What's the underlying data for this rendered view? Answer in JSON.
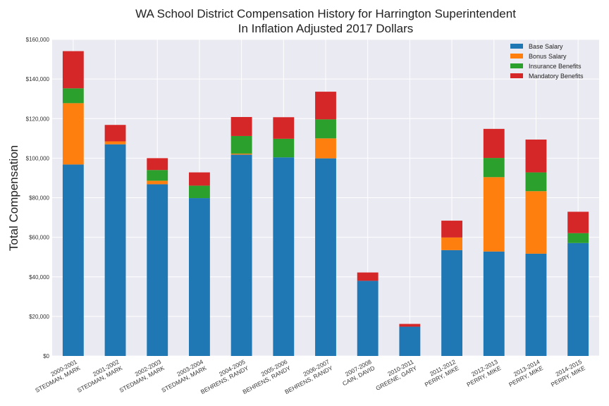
{
  "chart_data": {
    "type": "bar",
    "stacked": true,
    "title": "WA School District Compensation History for Harrington Superintendent",
    "subtitle": "In Inflation Adjusted 2017 Dollars",
    "xlabel": "",
    "ylabel": "Total Compensation",
    "ylim": [
      0,
      160000
    ],
    "yticks": [
      0,
      20000,
      40000,
      60000,
      80000,
      100000,
      120000,
      140000,
      160000
    ],
    "ytick_labels": [
      "$0",
      "$20,000",
      "$40,000",
      "$60,000",
      "$80,000",
      "$100,000",
      "$120,000",
      "$140,000",
      "$160,000"
    ],
    "grid": true,
    "legend_position": "top-right",
    "categories": [
      [
        "2000-2001",
        "STEDMAN, MARK"
      ],
      [
        "2001-2002",
        "STEDMAN, MARK"
      ],
      [
        "2002-2003",
        "STEDMAN, MARK"
      ],
      [
        "2003-2004",
        "STEDMAN, MARK"
      ],
      [
        "2004-2005",
        "BEHRENS, RANDY"
      ],
      [
        "2005-2006",
        "BEHRENS, RANDY"
      ],
      [
        "2006-2007",
        "BEHRENS, RANDY"
      ],
      [
        "2007-2008",
        "CAIN, DAVID"
      ],
      [
        "2010-2011",
        "GREENE, GARY"
      ],
      [
        "2011-2012",
        "PERRY, MIKE"
      ],
      [
        "2012-2013",
        "PERRY, MIKE"
      ],
      [
        "2013-2014",
        "PERRY, MIKE"
      ],
      [
        "2014-2015",
        "PERRY, MIKE"
      ]
    ],
    "series": [
      {
        "name": "Base Salary",
        "color": "#1f77b4",
        "values": [
          96800,
          107000,
          86800,
          79800,
          101800,
          100400,
          99900,
          38000,
          14800,
          53500,
          52800,
          51700,
          57100
        ]
      },
      {
        "name": "Bonus Salary",
        "color": "#ff7f0e",
        "values": [
          31000,
          1500,
          1800,
          0,
          500,
          0,
          10100,
          0,
          0,
          6400,
          37600,
          31600,
          0
        ]
      },
      {
        "name": "Insurance Benefits",
        "color": "#2ca02c",
        "values": [
          7500,
          0,
          5400,
          6300,
          8900,
          9400,
          9600,
          0,
          0,
          0,
          9700,
          9500,
          5000
        ]
      },
      {
        "name": "Mandatory Benefits",
        "color": "#d62728",
        "values": [
          18800,
          8300,
          6000,
          6700,
          9600,
          10900,
          14000,
          4200,
          1400,
          8500,
          14700,
          16600,
          10800
        ]
      }
    ]
  }
}
